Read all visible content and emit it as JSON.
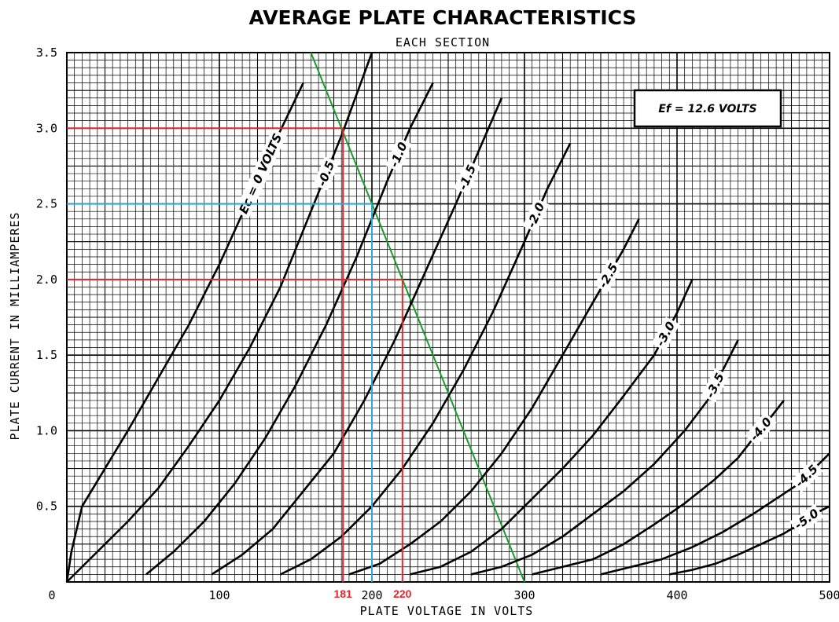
{
  "chart_data": {
    "type": "line",
    "title": "AVERAGE PLATE CHARACTERISTICS",
    "subtitle": "EACH SECTION",
    "xlabel": "PLATE VOLTAGE IN VOLTS",
    "ylabel": "PLATE CURRENT IN MILLIAMPERES",
    "xlim": [
      0,
      500
    ],
    "ylim": [
      0,
      3.5
    ],
    "xticks": [
      "0",
      "100",
      "200",
      "300",
      "400",
      "500"
    ],
    "yticks": [
      "0.5",
      "1.0",
      "1.5",
      "2.0",
      "2.5",
      "3.0",
      "3.5"
    ],
    "grid": true,
    "note": "Ef = 12.6 VOLTS",
    "series": [
      {
        "name": "Ec = 0 VOLTS",
        "x": [
          0,
          3,
          10,
          25,
          40,
          60,
          80,
          100,
          118,
          136,
          155,
          172
        ],
        "y": [
          0,
          0.2,
          0.5,
          0.75,
          1.0,
          1.35,
          1.7,
          2.1,
          2.5,
          2.9,
          3.3,
          3.6
        ]
      },
      {
        "name": "-0.5",
        "x": [
          0,
          20,
          40,
          60,
          80,
          100,
          120,
          140,
          160,
          180,
          200
        ],
        "y": [
          0,
          0.2,
          0.4,
          0.62,
          0.9,
          1.2,
          1.55,
          1.95,
          2.45,
          2.95,
          3.5
        ]
      },
      {
        "name": "-1.0",
        "x": [
          52,
          70,
          90,
          110,
          130,
          150,
          170,
          190,
          210,
          225,
          240
        ],
        "y": [
          0.05,
          0.2,
          0.4,
          0.65,
          0.95,
          1.3,
          1.7,
          2.15,
          2.65,
          3.0,
          3.3
        ]
      },
      {
        "name": "-1.5",
        "x": [
          95,
          115,
          135,
          155,
          175,
          195,
          215,
          235,
          255,
          270,
          285
        ],
        "y": [
          0.05,
          0.18,
          0.35,
          0.6,
          0.85,
          1.2,
          1.6,
          2.05,
          2.5,
          2.85,
          3.2
        ]
      },
      {
        "name": "-2.0",
        "x": [
          140,
          160,
          180,
          200,
          220,
          240,
          260,
          280,
          300,
          315,
          330
        ],
        "y": [
          0.05,
          0.15,
          0.3,
          0.5,
          0.75,
          1.05,
          1.4,
          1.8,
          2.25,
          2.6,
          2.9
        ]
      },
      {
        "name": "-2.5",
        "x": [
          185,
          205,
          225,
          245,
          265,
          285,
          305,
          325,
          345,
          365,
          375
        ],
        "y": [
          0.05,
          0.12,
          0.25,
          0.4,
          0.6,
          0.85,
          1.15,
          1.5,
          1.85,
          2.2,
          2.4
        ]
      },
      {
        "name": "-3.0",
        "x": [
          225,
          245,
          265,
          285,
          305,
          325,
          345,
          365,
          385,
          400,
          410
        ],
        "y": [
          0.05,
          0.1,
          0.2,
          0.35,
          0.55,
          0.75,
          0.97,
          1.23,
          1.5,
          1.78,
          2.0
        ]
      },
      {
        "name": "-3.5",
        "x": [
          265,
          285,
          305,
          325,
          345,
          365,
          385,
          405,
          420,
          430,
          440
        ],
        "y": [
          0.05,
          0.1,
          0.18,
          0.3,
          0.45,
          0.6,
          0.78,
          1.0,
          1.2,
          1.4,
          1.6
        ]
      },
      {
        "name": "-4.0",
        "x": [
          305,
          325,
          345,
          365,
          385,
          405,
          425,
          440,
          450,
          460,
          470
        ],
        "y": [
          0.05,
          0.1,
          0.15,
          0.25,
          0.38,
          0.52,
          0.68,
          0.82,
          0.95,
          1.07,
          1.2
        ]
      },
      {
        "name": "-4.5",
        "x": [
          350,
          370,
          390,
          410,
          430,
          450,
          465,
          480,
          490,
          500
        ],
        "y": [
          0.05,
          0.1,
          0.15,
          0.23,
          0.33,
          0.45,
          0.55,
          0.65,
          0.75,
          0.85
        ]
      },
      {
        "name": "-5.0",
        "x": [
          395,
          410,
          425,
          440,
          455,
          470,
          480,
          490,
          500
        ],
        "y": [
          0.05,
          0.08,
          0.12,
          0.18,
          0.25,
          0.32,
          0.38,
          0.45,
          0.5
        ]
      }
    ],
    "load_line": {
      "x": [
        160,
        300
      ],
      "y": [
        3.5,
        0
      ],
      "color": "#1a9a2a"
    },
    "annotations": [
      {
        "label": "181",
        "x": 181,
        "y": 3.0,
        "color": "#e8232b"
      },
      {
        "label": "",
        "x": 200,
        "y": 2.5,
        "color": "#29a9e0"
      },
      {
        "label": "220",
        "x": 220,
        "y": 2.0,
        "color": "#e8232b"
      }
    ]
  }
}
